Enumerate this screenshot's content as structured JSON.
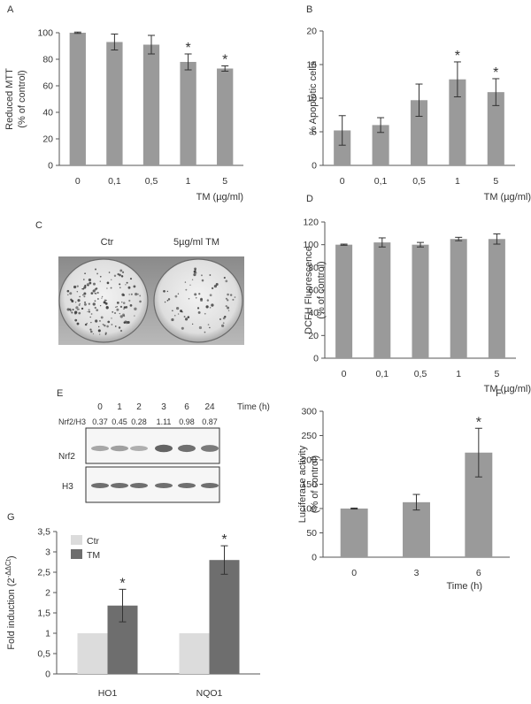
{
  "panels": {
    "A": "A",
    "B": "B",
    "C": "C",
    "D": "D",
    "E": "E",
    "F": "F",
    "G": "G"
  },
  "chart_data": [
    {
      "id": "A",
      "type": "bar",
      "categories": [
        "0",
        "0,1",
        "0,5",
        "1",
        "5"
      ],
      "values": [
        100,
        93,
        91,
        78,
        73
      ],
      "errors": [
        0.5,
        6,
        7,
        6,
        2
      ],
      "significant": [
        false,
        false,
        false,
        true,
        true
      ],
      "ylim": [
        0,
        100
      ],
      "yticks": [
        0,
        20,
        40,
        60,
        80,
        100
      ],
      "ylabel": "Reduced MTT",
      "ylabel2": "(% of control)",
      "xlabel": "TM (µg/ml)",
      "color": "#9a9a9a"
    },
    {
      "id": "B",
      "type": "bar",
      "categories": [
        "0",
        "0,1",
        "0,5",
        "1",
        "5"
      ],
      "values": [
        5.2,
        6.0,
        9.7,
        12.8,
        10.9
      ],
      "errors": [
        2.2,
        1.1,
        2.4,
        2.6,
        2.0
      ],
      "significant": [
        false,
        false,
        false,
        true,
        true
      ],
      "ylim": [
        0,
        20
      ],
      "yticks": [
        0,
        5,
        10,
        15,
        20
      ],
      "ylabel": "% Apoptotic cells",
      "ylabel2": "",
      "xlabel": "TM (µg/ml)",
      "color": "#9a9a9a"
    },
    {
      "id": "D",
      "type": "bar",
      "categories": [
        "0",
        "0,1",
        "0,5",
        "1",
        "5"
      ],
      "values": [
        100,
        102,
        100,
        105,
        105
      ],
      "errors": [
        0.5,
        4,
        2,
        1.5,
        4.5
      ],
      "significant": [
        false,
        false,
        false,
        false,
        false
      ],
      "ylim": [
        0,
        120
      ],
      "yticks": [
        0,
        20,
        40,
        60,
        80,
        100,
        120
      ],
      "ylabel": "DCFH Fluorescence",
      "ylabel2": "(% of control)",
      "xlabel": "TM (µg/ml)",
      "color": "#9a9a9a"
    },
    {
      "id": "F",
      "type": "bar",
      "categories": [
        "0",
        "3",
        "6"
      ],
      "values": [
        100,
        113,
        215
      ],
      "errors": [
        1,
        16,
        50
      ],
      "significant": [
        false,
        false,
        true
      ],
      "ylim": [
        0,
        300
      ],
      "yticks": [
        0,
        50,
        100,
        150,
        200,
        250,
        300
      ],
      "ylabel": "Luciferase activity",
      "ylabel2": "(% of control)",
      "xlabel": "Time (h)",
      "color": "#9a9a9a"
    },
    {
      "id": "G",
      "type": "bar",
      "categories": [
        "HO1",
        "NQO1"
      ],
      "series": [
        {
          "name": "Ctr",
          "values": [
            1,
            1
          ],
          "errors": [
            0,
            0
          ],
          "significant": [
            false,
            false
          ],
          "color": "#dcdcdc"
        },
        {
          "name": "TM",
          "values": [
            1.68,
            2.8
          ],
          "errors": [
            0.4,
            0.35
          ],
          "significant": [
            true,
            true
          ],
          "color": "#6e6e6e"
        }
      ],
      "ylim": [
        0,
        3.5
      ],
      "yticks": [
        "0",
        "0,5",
        "1",
        "1,5",
        "2",
        "2,5",
        "3",
        "3,5"
      ],
      "ylabel": "Fold induction (2",
      "ylabel_sup": "-ΔΔCt",
      "ylabel_end": ")",
      "xlabel": ""
    }
  ],
  "panel_c": {
    "left_label": "Ctr",
    "right_label": "5µg/ml TM"
  },
  "panel_e": {
    "times": [
      "0",
      "1",
      "2",
      "3",
      "6",
      "24"
    ],
    "time_label": "Time (h)",
    "ratio_label": "Nrf2/H3",
    "ratios": [
      "0.37",
      "0.45",
      "0.28",
      "1.11",
      "0.98",
      "0.87"
    ],
    "rows": [
      "Nrf2",
      "H3"
    ],
    "nrf2_intensity": [
      0.37,
      0.45,
      0.28,
      1.11,
      0.98,
      0.87
    ]
  }
}
